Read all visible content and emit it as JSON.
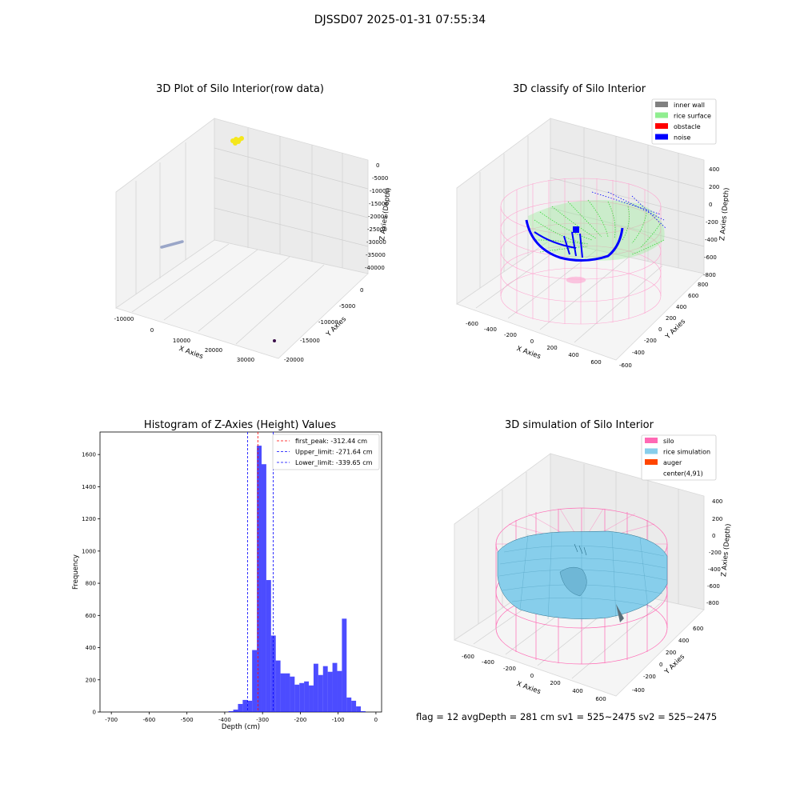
{
  "figure": {
    "suptitle": "DJSSD07 2025-01-31 07:55:34",
    "flag_text": "flag = 12   avgDepth = 281 cm  sv1 = 525~2475  sv2 = 525~2475"
  },
  "panels": {
    "raw": {
      "title": "3D Plot of Silo Interior(row data)",
      "xlabel": "X Axies",
      "ylabel": "Y Axies",
      "zlabel": "Z Axies (Depth)",
      "xticks": [
        "-10000",
        "0",
        "10000",
        "20000",
        "30000"
      ],
      "yticks": [
        "0",
        "-5000",
        "-10000",
        "-15000",
        "-20000"
      ],
      "zticks": [
        "0",
        "-5000",
        "-10000",
        "-15000",
        "-20000",
        "-25000",
        "-30000",
        "-35000",
        "-40000"
      ],
      "colors": {
        "yellow_cluster": "#f5e71c",
        "line_cluster": "#9aa6c8",
        "dot": "#3b0f4a"
      }
    },
    "classify": {
      "title": "3D classify of Silo Interior",
      "xlabel": "X Axies",
      "ylabel": "Y Axies",
      "zlabel": "Z Axies (Depth)",
      "xticks": [
        "-600",
        "-400",
        "-200",
        "0",
        "200",
        "400",
        "600"
      ],
      "yticks": [
        "800",
        "600",
        "400",
        "200",
        "0",
        "-200",
        "-400",
        "-600"
      ],
      "zticks": [
        "400",
        "200",
        "0",
        "-200",
        "-400",
        "-600",
        "-800"
      ],
      "legend": [
        {
          "label": "inner wall",
          "color": "#808080"
        },
        {
          "label": "rice surface",
          "color": "#90ee90"
        },
        {
          "label": "obstacle",
          "color": "#ff0000"
        },
        {
          "label": "noise",
          "color": "#0000ff"
        }
      ]
    },
    "simulation": {
      "title": "3D simulation of Silo Interior",
      "xlabel": "X Axies",
      "ylabel": "Y Axies",
      "zlabel": "Z Axies (Depth)",
      "xticks": [
        "-600",
        "-400",
        "-200",
        "0",
        "200",
        "400",
        "600"
      ],
      "yticks": [
        "600",
        "400",
        "200",
        "0",
        "-200",
        "-400"
      ],
      "zticks": [
        "400",
        "200",
        "0",
        "-200",
        "-400",
        "-600",
        "-800"
      ],
      "legend": [
        {
          "label": "silo",
          "color": "#ff69b4"
        },
        {
          "label": "rice simulation",
          "color": "#87ceeb"
        },
        {
          "label": "auger",
          "color": "#ff4500"
        },
        {
          "label": "center(4,91)",
          "color": ""
        }
      ]
    }
  },
  "chart_data": {
    "type": "bar",
    "title": "Histogram of Z-Axies (Height) Values",
    "xlabel": "Depth (cm)",
    "ylabel": "Frequency",
    "xlim": [
      -730,
      15
    ],
    "ylim": [
      0,
      1740
    ],
    "xticks": [
      -700,
      -600,
      -500,
      -400,
      -300,
      -200,
      -100,
      0
    ],
    "yticks": [
      0,
      200,
      400,
      600,
      800,
      1000,
      1200,
      1400,
      1600
    ],
    "bar_color": "#0000ff",
    "bin_width": 12.5,
    "bins_left": [
      -390,
      -377.5,
      -365,
      -352.5,
      -340,
      -327.5,
      -315,
      -302.5,
      -290,
      -277.5,
      -265,
      -252.5,
      -240,
      -227.5,
      -215,
      -202.5,
      -190,
      -177.5,
      -165,
      -152.5,
      -140,
      -127.5,
      -115,
      -102.5,
      -90,
      -77.5,
      -65,
      -52.5,
      -40,
      -27.5
    ],
    "values": [
      5,
      15,
      50,
      75,
      70,
      385,
      1655,
      1540,
      820,
      475,
      320,
      240,
      240,
      220,
      170,
      180,
      190,
      165,
      300,
      230,
      285,
      250,
      305,
      255,
      580,
      90,
      70,
      35,
      5,
      0
    ],
    "lines": [
      {
        "label": "first_peak: -312.44 cm",
        "x": -312.44,
        "color": "#ff0000"
      },
      {
        "label": "Upper_limit: -271.64 cm",
        "x": -271.64,
        "color": "#0000ff"
      },
      {
        "label": "Lower_limit: -339.65 cm",
        "x": -339.65,
        "color": "#0000ff"
      }
    ],
    "legend_position": "upper right"
  }
}
